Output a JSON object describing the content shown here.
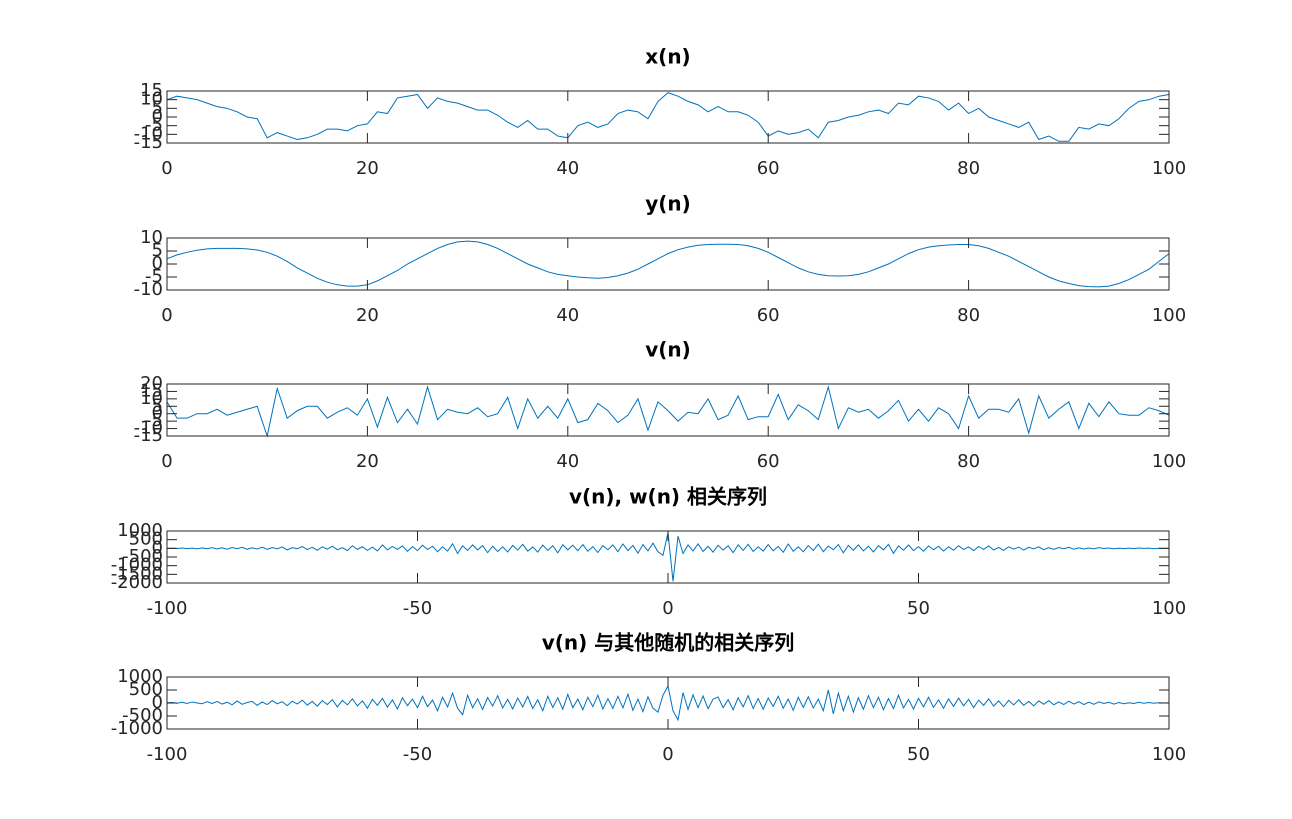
{
  "chart_data": [
    {
      "type": "line",
      "title": "x(n)",
      "color": "#0072bd",
      "x": [
        0,
        1,
        2,
        3,
        4,
        5,
        6,
        7,
        8,
        9,
        10,
        11,
        12,
        13,
        14,
        15,
        16,
        17,
        18,
        19,
        20,
        21,
        22,
        23,
        24,
        25,
        26,
        27,
        28,
        29,
        30,
        31,
        32,
        33,
        34,
        35,
        36,
        37,
        38,
        39,
        40,
        41,
        42,
        43,
        44,
        45,
        46,
        47,
        48,
        49,
        50,
        51,
        52,
        53,
        54,
        55,
        56,
        57,
        58,
        59,
        60,
        61,
        62,
        63,
        64,
        65,
        66,
        67,
        68,
        69,
        70,
        71,
        72,
        73,
        74,
        75,
        76,
        77,
        78,
        79,
        80,
        81,
        82,
        83,
        84,
        85,
        86,
        87,
        88,
        89,
        90,
        91,
        92,
        93,
        94,
        95,
        96,
        97,
        98,
        99,
        100
      ],
      "values": [
        10,
        12,
        11,
        10,
        8,
        6,
        5,
        3,
        0,
        -1,
        -12,
        -9,
        -11,
        -13,
        -12,
        -10,
        -7,
        -7,
        -8,
        -5,
        -4,
        3,
        2,
        11,
        12,
        13,
        5,
        11,
        9,
        8,
        6,
        4,
        4,
        1,
        -3,
        -6,
        -2,
        -7,
        -7,
        -11,
        -12,
        -5,
        -3,
        -6,
        -4,
        2,
        4,
        3,
        -1,
        9,
        14,
        12,
        9,
        7,
        3,
        6,
        3,
        3,
        1,
        -3,
        -11,
        -8,
        -10,
        -9,
        -7,
        -12,
        -3,
        -2,
        0,
        1,
        3,
        4,
        2,
        8,
        7,
        12,
        11,
        9,
        4,
        8,
        2,
        5,
        0,
        -2,
        -4,
        -6,
        -3,
        -13,
        -11,
        -14,
        -14,
        -6,
        -7,
        -4,
        -5,
        -1,
        5,
        9,
        10,
        12,
        13
      ],
      "xlim": [
        0,
        100
      ],
      "xticks": [
        0,
        20,
        40,
        60,
        80,
        100
      ],
      "ylim": [
        -15,
        15
      ],
      "yticks": [
        -15,
        -10,
        -5,
        0,
        5,
        10,
        15
      ]
    },
    {
      "type": "line",
      "title": "y(n)",
      "color": "#0072bd",
      "x": [
        0,
        1,
        2,
        3,
        4,
        5,
        6,
        7,
        8,
        9,
        10,
        11,
        12,
        13,
        14,
        15,
        16,
        17,
        18,
        19,
        20,
        21,
        22,
        23,
        24,
        25,
        26,
        27,
        28,
        29,
        30,
        31,
        32,
        33,
        34,
        35,
        36,
        37,
        38,
        39,
        40,
        41,
        42,
        43,
        44,
        45,
        46,
        47,
        48,
        49,
        50,
        51,
        52,
        53,
        54,
        55,
        56,
        57,
        58,
        59,
        60,
        61,
        62,
        63,
        64,
        65,
        66,
        67,
        68,
        69,
        70,
        71,
        72,
        73,
        74,
        75,
        76,
        77,
        78,
        79,
        80,
        81,
        82,
        83,
        84,
        85,
        86,
        87,
        88,
        89,
        90,
        91,
        92,
        93,
        94,
        95,
        96,
        97,
        98,
        99,
        100
      ],
      "values": [
        2,
        3.5,
        4.5,
        5.3,
        5.8,
        6,
        6,
        6,
        5.8,
        5.4,
        4.5,
        3,
        1,
        -1.5,
        -3.5,
        -5.5,
        -7,
        -8,
        -8.5,
        -8.5,
        -8,
        -6.5,
        -4.5,
        -2.5,
        0,
        2,
        4,
        6,
        7.5,
        8.5,
        8.8,
        8.5,
        7.5,
        6,
        4,
        2,
        0,
        -1.5,
        -3,
        -4,
        -4.5,
        -5,
        -5.3,
        -5.5,
        -5.2,
        -4.5,
        -3.5,
        -2,
        0,
        2,
        4,
        5.5,
        6.5,
        7.2,
        7.5,
        7.6,
        7.6,
        7.5,
        7,
        6,
        4.5,
        2.5,
        0.5,
        -1.5,
        -3,
        -4,
        -4.5,
        -4.6,
        -4.5,
        -4,
        -3,
        -1.5,
        0,
        2,
        4,
        5.5,
        6.5,
        7,
        7.3,
        7.5,
        7.5,
        7,
        6,
        4.5,
        3,
        1,
        -1,
        -3,
        -5,
        -6.5,
        -7.5,
        -8.3,
        -8.7,
        -8.8,
        -8.5,
        -7.5,
        -6,
        -4,
        -2,
        1,
        4
      ],
      "xlim": [
        0,
        100
      ],
      "xticks": [
        0,
        20,
        40,
        60,
        80,
        100
      ],
      "ylim": [
        -10,
        10
      ],
      "yticks": [
        -10,
        -5,
        0,
        5,
        10
      ]
    },
    {
      "type": "line",
      "title": "v(n)",
      "color": "#0072bd",
      "x": [
        0,
        1,
        2,
        3,
        4,
        5,
        6,
        7,
        8,
        9,
        10,
        11,
        12,
        13,
        14,
        15,
        16,
        17,
        18,
        19,
        20,
        21,
        22,
        23,
        24,
        25,
        26,
        27,
        28,
        29,
        30,
        31,
        32,
        33,
        34,
        35,
        36,
        37,
        38,
        39,
        40,
        41,
        42,
        43,
        44,
        45,
        46,
        47,
        48,
        49,
        50,
        51,
        52,
        53,
        54,
        55,
        56,
        57,
        58,
        59,
        60,
        61,
        62,
        63,
        64,
        65,
        66,
        67,
        68,
        69,
        70,
        71,
        72,
        73,
        74,
        75,
        76,
        77,
        78,
        79,
        80,
        81,
        82,
        83,
        84,
        85,
        86,
        87,
        88,
        89,
        90,
        91,
        92,
        93,
        94,
        95,
        96,
        97,
        98,
        99,
        100
      ],
      "values": [
        8,
        -3,
        -3,
        0,
        0,
        3,
        -1,
        1,
        3,
        5,
        -15,
        17,
        -3,
        2,
        5,
        5,
        -3,
        1,
        4,
        -1,
        10,
        -9,
        11,
        -6,
        3,
        -7,
        18,
        -4,
        3,
        1,
        0,
        4,
        -2,
        0,
        11,
        -10,
        10,
        -3,
        5,
        -3,
        10,
        -6,
        -4,
        7,
        2,
        -6,
        -1,
        10,
        -11,
        8,
        2,
        -5,
        1,
        0,
        10,
        -4,
        -1,
        12,
        -4,
        -2,
        -2,
        13,
        -4,
        6,
        2,
        -4,
        18,
        -10,
        4,
        1,
        3,
        -3,
        2,
        9,
        -5,
        3,
        -5,
        4,
        0,
        -10,
        12,
        -3,
        3,
        3,
        1,
        10,
        -13,
        12,
        -3,
        3,
        8,
        -10,
        7,
        -2,
        8,
        0,
        -1,
        -1,
        4,
        2,
        -1
      ],
      "xlim": [
        0,
        100
      ],
      "xticks": [
        0,
        20,
        40,
        60,
        80,
        100
      ],
      "ylim": [
        -15,
        20
      ],
      "yticks": [
        -15,
        -10,
        -5,
        0,
        5,
        10,
        15,
        20
      ]
    },
    {
      "type": "line",
      "title": "v(n), w(n) 相关序列",
      "color": "#0072bd",
      "x": [
        -100,
        -99,
        -98,
        -97,
        -96,
        -95,
        -94,
        -93,
        -92,
        -91,
        -90,
        -89,
        -88,
        -87,
        -86,
        -85,
        -84,
        -83,
        -82,
        -81,
        -80,
        -79,
        -78,
        -77,
        -76,
        -75,
        -74,
        -73,
        -72,
        -71,
        -70,
        -69,
        -68,
        -67,
        -66,
        -65,
        -64,
        -63,
        -62,
        -61,
        -60,
        -59,
        -58,
        -57,
        -56,
        -55,
        -54,
        -53,
        -52,
        -51,
        -50,
        -49,
        -48,
        -47,
        -46,
        -45,
        -44,
        -43,
        -42,
        -41,
        -40,
        -39,
        -38,
        -37,
        -36,
        -35,
        -34,
        -33,
        -32,
        -31,
        -30,
        -29,
        -28,
        -27,
        -26,
        -25,
        -24,
        -23,
        -22,
        -21,
        -20,
        -19,
        -18,
        -17,
        -16,
        -15,
        -14,
        -13,
        -12,
        -11,
        -10,
        -9,
        -8,
        -7,
        -6,
        -5,
        -4,
        -3,
        -2,
        -1,
        0,
        1,
        2,
        3,
        4,
        5,
        6,
        7,
        8,
        9,
        10,
        11,
        12,
        13,
        14,
        15,
        16,
        17,
        18,
        19,
        20,
        21,
        22,
        23,
        24,
        25,
        26,
        27,
        28,
        29,
        30,
        31,
        32,
        33,
        34,
        35,
        36,
        37,
        38,
        39,
        40,
        41,
        42,
        43,
        44,
        45,
        46,
        47,
        48,
        49,
        50,
        51,
        52,
        53,
        54,
        55,
        56,
        57,
        58,
        59,
        60,
        61,
        62,
        63,
        64,
        65,
        66,
        67,
        68,
        69,
        70,
        71,
        72,
        73,
        74,
        75,
        76,
        77,
        78,
        79,
        80,
        81,
        82,
        83,
        84,
        85,
        86,
        87,
        88,
        89,
        90,
        91,
        92,
        93,
        94,
        95,
        96,
        97,
        98,
        99,
        100
      ],
      "values": [
        0,
        5,
        -10,
        20,
        -15,
        10,
        -30,
        25,
        -20,
        40,
        -35,
        30,
        -50,
        45,
        -20,
        60,
        -55,
        30,
        -40,
        70,
        -60,
        50,
        -30,
        80,
        -90,
        40,
        -20,
        100,
        -70,
        60,
        -110,
        90,
        -50,
        120,
        -80,
        40,
        -130,
        150,
        -60,
        90,
        -120,
        70,
        -150,
        200,
        -90,
        110,
        -60,
        140,
        -170,
        100,
        -130,
        180,
        -70,
        120,
        -200,
        90,
        -160,
        260,
        -300,
        150,
        -120,
        200,
        -90,
        160,
        -250,
        120,
        -180,
        90,
        -210,
        170,
        -100,
        230,
        -160,
        80,
        -220,
        190,
        -120,
        150,
        -260,
        210,
        -90,
        180,
        -140,
        220,
        -170,
        100,
        -240,
        160,
        -80,
        200,
        -190,
        250,
        -130,
        170,
        -280,
        220,
        -150,
        300,
        -200,
        -400,
        900,
        -1900,
        700,
        -300,
        200,
        -150,
        260,
        -180,
        120,
        -220,
        180,
        -100,
        150,
        -250,
        200,
        -120,
        230,
        -180,
        90,
        -160,
        210,
        -140,
        110,
        -230,
        250,
        -170,
        90,
        -200,
        160,
        -120,
        240,
        -190,
        130,
        -80,
        220,
        -260,
        170,
        -110,
        200,
        -150,
        120,
        -210,
        160,
        -90,
        230,
        -290,
        140,
        -110,
        190,
        -130,
        100,
        -170,
        140,
        -80,
        120,
        -160,
        90,
        -110,
        150,
        -70,
        80,
        -130,
        110,
        -60,
        140,
        -100,
        50,
        -120,
        90,
        -40,
        70,
        -100,
        60,
        -30,
        90,
        -80,
        40,
        -60,
        50,
        -20,
        60,
        -50,
        30,
        -40,
        20,
        -30,
        40,
        -10,
        20,
        -30,
        10,
        -20,
        15,
        -10,
        20,
        -5,
        10,
        -15,
        5,
        0,
        5
      ],
      "xlim": [
        -100,
        100
      ],
      "xticks": [
        -100,
        -50,
        0,
        50,
        100
      ],
      "ylim": [
        -2000,
        1000
      ],
      "yticks": [
        -2000,
        -1500,
        -1000,
        -500,
        0,
        500,
        1000
      ]
    },
    {
      "type": "line",
      "title": "v(n) 与其他随机的相关序列",
      "color": "#0072bd",
      "x": [
        -100,
        -99,
        -98,
        -97,
        -96,
        -95,
        -94,
        -93,
        -92,
        -91,
        -90,
        -89,
        -88,
        -87,
        -86,
        -85,
        -84,
        -83,
        -82,
        -81,
        -80,
        -79,
        -78,
        -77,
        -76,
        -75,
        -74,
        -73,
        -72,
        -71,
        -70,
        -69,
        -68,
        -67,
        -66,
        -65,
        -64,
        -63,
        -62,
        -61,
        -60,
        -59,
        -58,
        -57,
        -56,
        -55,
        -54,
        -53,
        -52,
        -51,
        -50,
        -49,
        -48,
        -47,
        -46,
        -45,
        -44,
        -43,
        -42,
        -41,
        -40,
        -39,
        -38,
        -37,
        -36,
        -35,
        -34,
        -33,
        -32,
        -31,
        -30,
        -29,
        -28,
        -27,
        -26,
        -25,
        -24,
        -23,
        -22,
        -21,
        -20,
        -19,
        -18,
        -17,
        -16,
        -15,
        -14,
        -13,
        -12,
        -11,
        -10,
        -9,
        -8,
        -7,
        -6,
        -5,
        -4,
        -3,
        -2,
        -1,
        0,
        1,
        2,
        3,
        4,
        5,
        6,
        7,
        8,
        9,
        10,
        11,
        12,
        13,
        14,
        15,
        16,
        17,
        18,
        19,
        20,
        21,
        22,
        23,
        24,
        25,
        26,
        27,
        28,
        29,
        30,
        31,
        32,
        33,
        34,
        35,
        36,
        37,
        38,
        39,
        40,
        41,
        42,
        43,
        44,
        45,
        46,
        47,
        48,
        49,
        50,
        51,
        52,
        53,
        54,
        55,
        56,
        57,
        58,
        59,
        60,
        61,
        62,
        63,
        64,
        65,
        66,
        67,
        68,
        69,
        70,
        71,
        72,
        73,
        74,
        75,
        76,
        77,
        78,
        79,
        80,
        81,
        82,
        83,
        84,
        85,
        86,
        87,
        88,
        89,
        90,
        91,
        92,
        93,
        94,
        95,
        96,
        97,
        98,
        99,
        100
      ],
      "values": [
        10,
        20,
        -10,
        30,
        -20,
        40,
        0,
        -30,
        50,
        -20,
        60,
        -40,
        30,
        -70,
        80,
        -50,
        20,
        60,
        -90,
        40,
        -60,
        90,
        -30,
        50,
        -100,
        70,
        -40,
        110,
        -80,
        60,
        -120,
        90,
        -60,
        130,
        -150,
        100,
        -70,
        160,
        -110,
        80,
        -200,
        140,
        -90,
        180,
        -160,
        120,
        -230,
        200,
        -100,
        150,
        -180,
        260,
        -140,
        110,
        -300,
        220,
        -150,
        380,
        -200,
        -450,
        300,
        -180,
        160,
        -250,
        210,
        -120,
        280,
        -190,
        140,
        -230,
        190,
        -150,
        250,
        -210,
        120,
        -300,
        260,
        -170,
        200,
        -240,
        330,
        -180,
        150,
        -260,
        220,
        -140,
        300,
        -230,
        170,
        -210,
        260,
        -190,
        340,
        -280,
        150,
        -330,
        240,
        -200,
        -350,
        300,
        650,
        -300,
        -650,
        400,
        -250,
        320,
        -180,
        270,
        -220,
        150,
        230,
        -180,
        130,
        -260,
        200,
        -150,
        280,
        -210,
        170,
        -240,
        190,
        -130,
        260,
        -200,
        150,
        -280,
        220,
        -170,
        240,
        -190,
        150,
        -300,
        500,
        -420,
        380,
        -300,
        260,
        -350,
        200,
        -240,
        280,
        -180,
        220,
        -260,
        170,
        -210,
        300,
        -190,
        140,
        -230,
        180,
        -150,
        220,
        -170,
        120,
        -200,
        160,
        -130,
        190,
        -110,
        140,
        -180,
        110,
        -90,
        160,
        -120,
        80,
        -140,
        100,
        -70,
        120,
        -90,
        60,
        -110,
        80,
        -50,
        90,
        -70,
        40,
        -60,
        70,
        -40,
        50,
        -60,
        30,
        -50,
        40,
        -20,
        30,
        -40,
        20,
        -30,
        10,
        -20,
        30,
        -10,
        20,
        -10,
        10,
        0,
        10
      ],
      "xlim": [
        -100,
        100
      ],
      "xticks": [
        -100,
        -50,
        0,
        50,
        100
      ],
      "ylim": [
        -1000,
        1000
      ],
      "yticks": [
        -1000,
        -500,
        0,
        500,
        1000
      ]
    }
  ]
}
